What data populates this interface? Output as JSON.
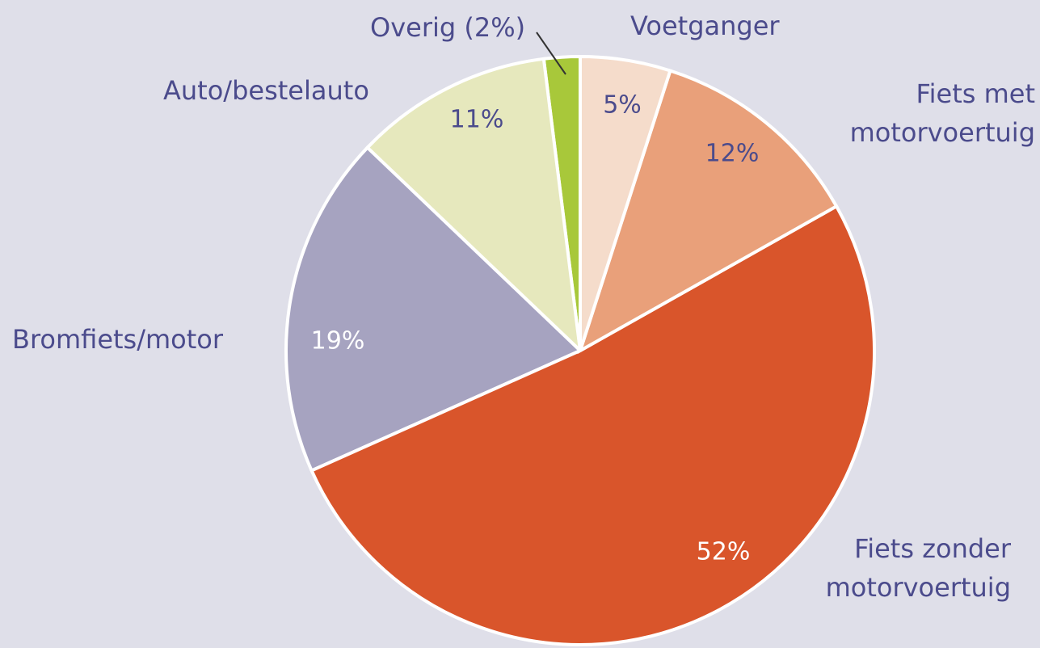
{
  "chart_data": {
    "type": "pie",
    "categories": [
      "Voetganger",
      "Fiets met\nmotorvoertuig",
      "Fiets zonder\nmotorvoertuig",
      "Bromfiets/motor",
      "Auto/bestelauto",
      "Overig (2%)"
    ],
    "values": [
      5,
      12,
      52,
      19,
      11,
      2
    ],
    "value_labels": [
      "5%",
      "12%",
      "52%",
      "19%",
      "11%",
      null
    ],
    "colors": [
      "#f5dccb",
      "#e9a07a",
      "#d9552b",
      "#a6a3c0",
      "#e6e8bd",
      "#a8c83a"
    ]
  }
}
